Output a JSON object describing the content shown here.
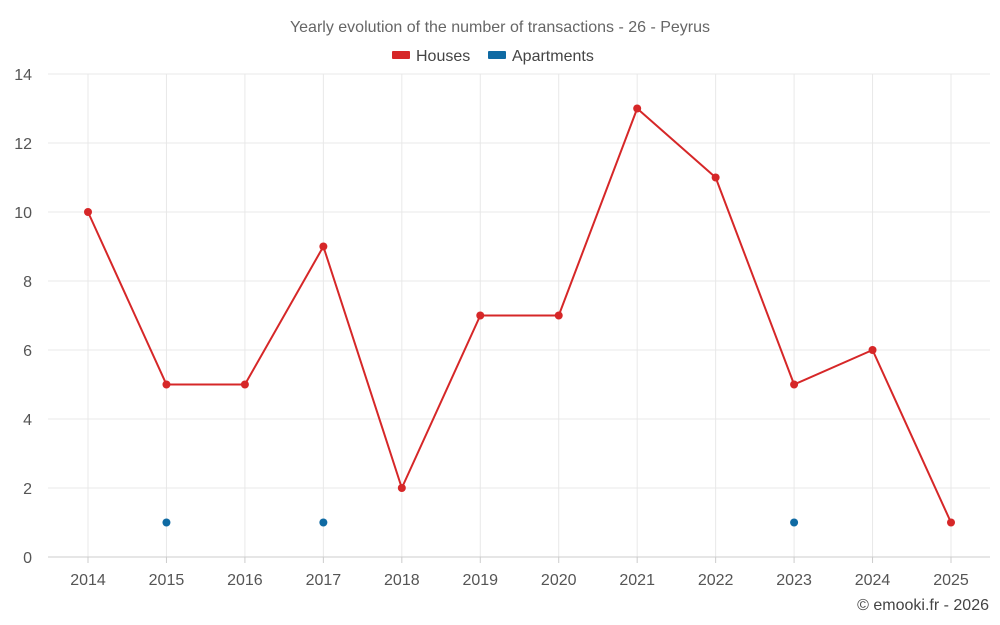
{
  "chart_data": {
    "type": "line",
    "title": "Yearly evolution of the number of transactions - 26 - Peyrus",
    "xlabel": "",
    "ylabel": "",
    "categories": [
      "2014",
      "2015",
      "2016",
      "2017",
      "2018",
      "2019",
      "2020",
      "2021",
      "2022",
      "2023",
      "2024",
      "2025"
    ],
    "ylim": [
      0,
      14
    ],
    "yticks": [
      0,
      2,
      4,
      6,
      8,
      10,
      12,
      14
    ],
    "grid": true,
    "legend_position": "top-center",
    "series": [
      {
        "name": "Houses",
        "color": "#d62728",
        "style": "line-markers",
        "values": [
          10,
          5,
          5,
          9,
          2,
          7,
          7,
          13,
          11,
          5,
          6,
          1
        ]
      },
      {
        "name": "Apartments",
        "color": "#0f6aa3",
        "style": "markers",
        "values": [
          null,
          1,
          null,
          1,
          null,
          null,
          null,
          null,
          null,
          1,
          null,
          null
        ]
      }
    ]
  },
  "credit": "© emooki.fr - 2026"
}
